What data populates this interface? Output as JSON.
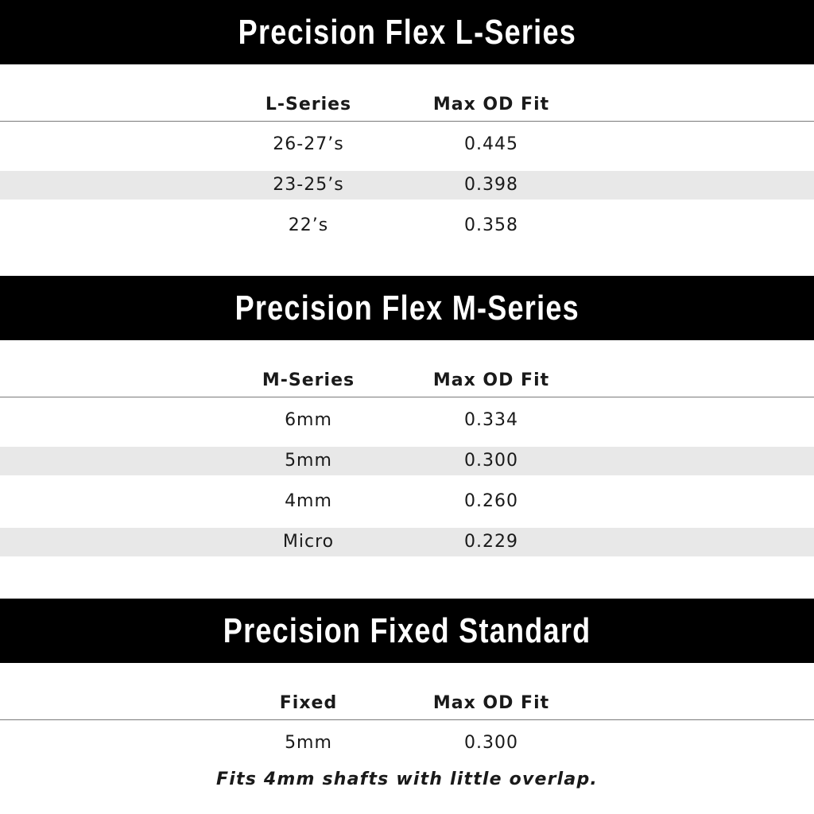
{
  "sections": [
    {
      "title": "Precision Flex L-Series",
      "col1": "L-Series",
      "col2": "Max OD Fit",
      "rows": [
        [
          "26-27’s",
          "0.445"
        ],
        [
          "23-25’s",
          "0.398"
        ],
        [
          "22’s",
          "0.358"
        ]
      ]
    },
    {
      "title": "Precision Flex M-Series",
      "col1": "M-Series",
      "col2": "Max OD Fit",
      "rows": [
        [
          "6mm",
          "0.334"
        ],
        [
          "5mm",
          "0.300"
        ],
        [
          "4mm",
          "0.260"
        ],
        [
          "Micro",
          "0.229"
        ]
      ]
    },
    {
      "title": "Precision Fixed Standard",
      "col1": "Fixed",
      "col2": "Max OD Fit",
      "rows": [
        [
          "5mm",
          "0.300"
        ]
      ]
    }
  ],
  "footnote": "Fits 4mm shafts with little overlap.",
  "colors": {
    "header_bg": "#000000",
    "stripe": "#e8e8e8"
  }
}
